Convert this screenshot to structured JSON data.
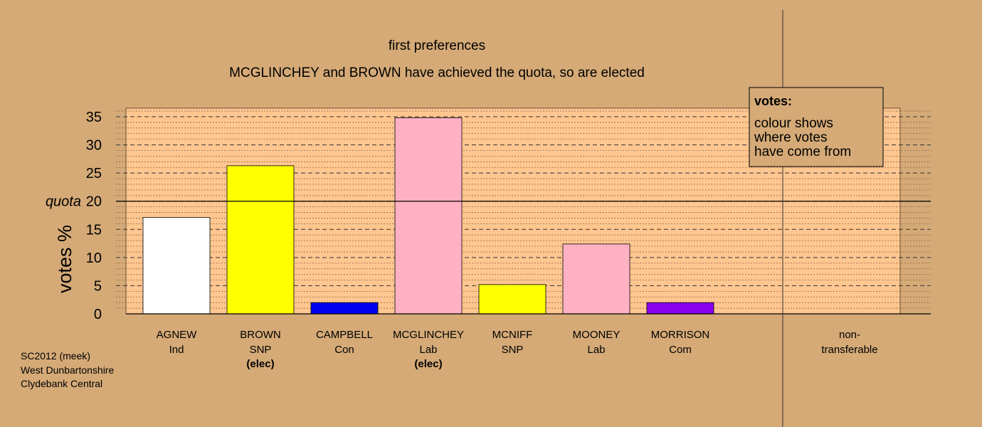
{
  "chart_data": {
    "type": "bar",
    "title": "first preferences",
    "subtitle": "MCGLINCHEY and BROWN have achieved the quota, so are elected",
    "ylabel": "votes %",
    "ylim": [
      0,
      35
    ],
    "yticks": [
      0,
      5,
      10,
      15,
      20,
      25,
      30,
      35
    ],
    "quota": 20,
    "quota_label": "quota",
    "grid": true,
    "categories": [
      {
        "name": "AGNEW",
        "party": "Ind",
        "elected": "",
        "value": 17.1,
        "color": "#ffffff"
      },
      {
        "name": "BROWN",
        "party": "SNP",
        "elected": "(elec)",
        "value": 26.3,
        "color": "#ffff00"
      },
      {
        "name": "CAMPBELL",
        "party": "Con",
        "elected": "",
        "value": 2.0,
        "color": "#0000ee"
      },
      {
        "name": "MCGLINCHEY",
        "party": "Lab",
        "elected": "(elec)",
        "value": 34.8,
        "color": "#ffb1c4"
      },
      {
        "name": "MCNIFF",
        "party": "SNP",
        "elected": "",
        "value": 5.2,
        "color": "#ffff00"
      },
      {
        "name": "MOONEY",
        "party": "Lab",
        "elected": "",
        "value": 12.4,
        "color": "#ffb1c4"
      },
      {
        "name": "MORRISON",
        "party": "Com",
        "elected": "",
        "value": 2.0,
        "color": "#8800ee"
      }
    ],
    "nontransferable": {
      "label_line1": "non-",
      "label_line2": "transferable",
      "value": 0
    },
    "legend": {
      "position": "top-right",
      "title": "votes:",
      "lines": [
        "colour shows",
        "where votes",
        "have come from"
      ]
    }
  },
  "footer": {
    "line1": "SC2012 (meek)",
    "line2": "West Dunbartonshire",
    "line3": "Clydebank Central"
  },
  "colors": {
    "background": "#d5aa77",
    "plot_area": "#ffc690",
    "legend_bg": "#d5aa77"
  }
}
